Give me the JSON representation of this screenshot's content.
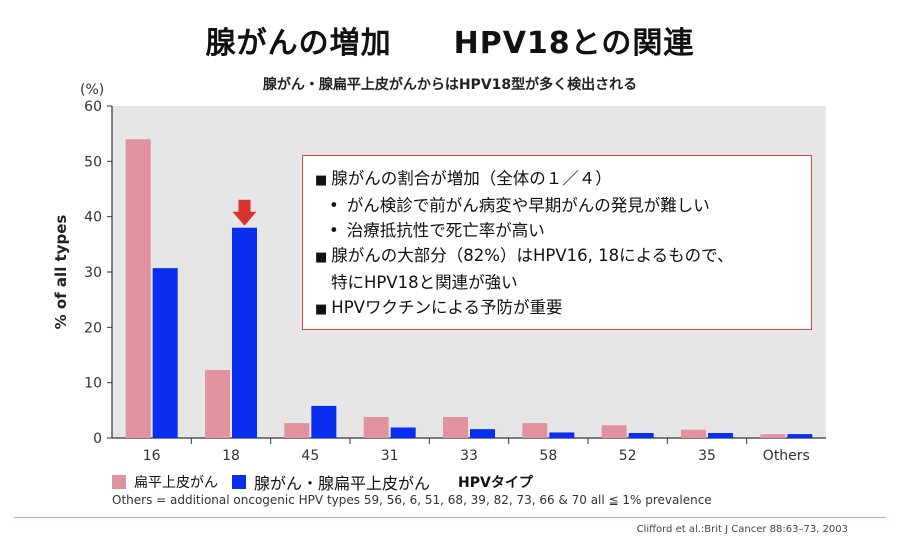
{
  "title": "腺がんの増加　　HPV18との関連",
  "subtitle": "腺がん・腺扁平上皮がんからはHPV18型が多く検出される",
  "callout": {
    "line1": "腺がんの割合が増加（全体の１／４）",
    "bullet1": "がん検診で前がん病変や早期がんの発見が難しい",
    "bullet2": "治療抵抗性で死亡率が高い",
    "line2a": "腺がんの大部分（82%）はHPV16, 18によるもので、",
    "line2b": "特にHPV18と関連が強い",
    "line3": "HPVワクチンによる予防が重要"
  },
  "legend_labels": {
    "squamous": "扁平上皮がん",
    "adeno": "腺がん・腺扁平上皮がん",
    "type_label": "HPVタイプ"
  },
  "others_note": "Others = additional oncogenic HPV types 59, 56, 6, 51, 68, 39, 82, 73, 66 & 70 all ≦ 1% prevalence",
  "source": "Clifford et al.:Brit J Cancer 88:63–73, 2003",
  "colors": {
    "squamous": "#e0939e",
    "adeno": "#0a2ef0",
    "plot_bg": "#e6e6e6",
    "arrow": "#d9342b",
    "callout_border": "#e0483b"
  },
  "chart_data": {
    "type": "bar",
    "title": "腺がん・腺扁平上皮がんからはHPV18型が多く検出される",
    "xlabel": "HPVタイプ",
    "ylabel": "% of all types",
    "yunit": "(%)",
    "ylim": [
      0,
      60
    ],
    "yticks": [
      0,
      10,
      20,
      30,
      40,
      50,
      60
    ],
    "categories": [
      "16",
      "18",
      "45",
      "31",
      "33",
      "58",
      "52",
      "35",
      "Others"
    ],
    "series": [
      {
        "name": "扁平上皮がん",
        "values": [
          54,
          12.3,
          2.7,
          3.8,
          3.8,
          2.7,
          2.3,
          1.5,
          0.7
        ]
      },
      {
        "name": "腺がん・腺扁平上皮がん",
        "values": [
          30.7,
          38,
          5.8,
          1.9,
          1.6,
          1.0,
          0.9,
          0.9,
          0.7
        ]
      }
    ],
    "grid": false,
    "highlight_category": "18",
    "legend_position": "bottom-left"
  }
}
